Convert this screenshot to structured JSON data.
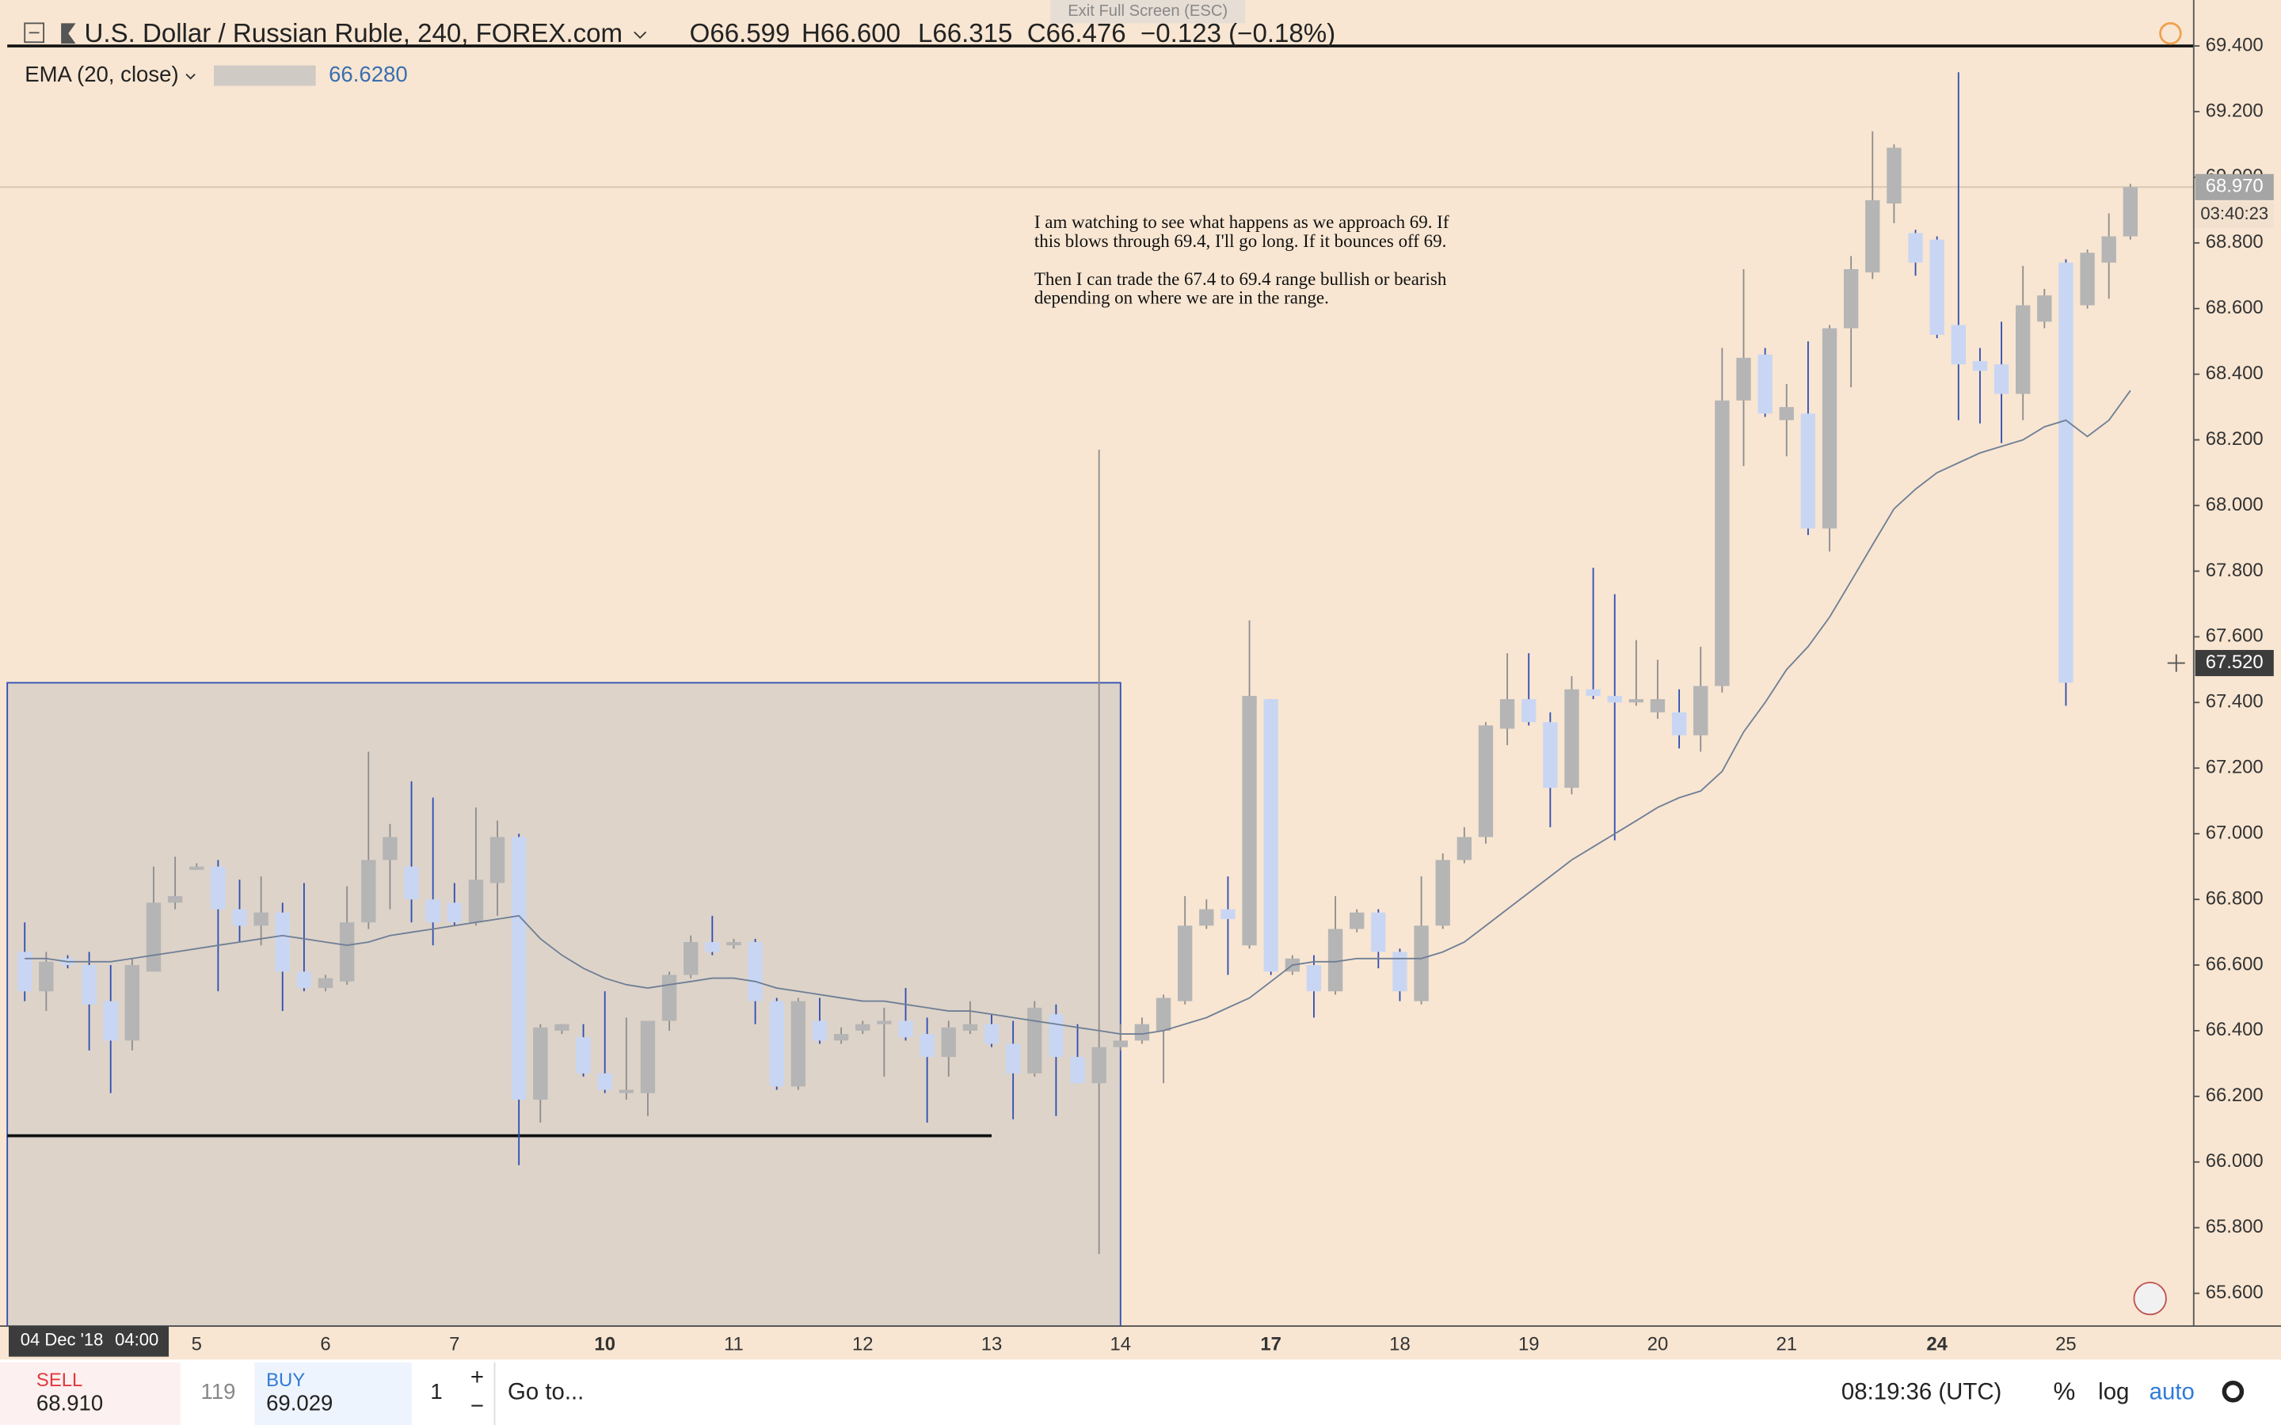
{
  "ui": {
    "fullscreen_hint": "Exit Full Screen (ESC)",
    "ohlc_header": [
      "O66.599",
      "H66.600",
      "L66.315",
      "C66.476",
      "−0.123 (−0.18%)"
    ],
    "countdown": "03:40:23",
    "crosshair_time": "04 Dec '18",
    "crosshair_clock": "04:00",
    "sell_label": "SELL",
    "sell_price": "68.910",
    "spread": "119",
    "buy_label": "BUY",
    "buy_price": "69.029",
    "quantity": "1",
    "plus": "+",
    "minus": "−",
    "goto": "Go to...",
    "clock": "08:19:36 (UTC)",
    "percent": "%",
    "log": "log",
    "auto": "auto"
  },
  "chart_data": {
    "type": "candlestick",
    "title": "U.S. Dollar / Russian Ruble, 240, FOREX.com",
    "annotation": [
      "I am watching to see what happens as we approach 69. If",
      "this blows through 69.4, I'll go long. If it bounces off 69.",
      "Then I can trade the 67.4 to 69.4 range bullish or bearish",
      "depending on where we are in the range."
    ],
    "categories": [
      null,
      null,
      null,
      null,
      null,
      null,
      null,
      null,
      "5",
      null,
      null,
      null,
      null,
      null,
      "6",
      null,
      null,
      null,
      null,
      null,
      "7",
      null,
      null,
      null,
      null,
      null,
      null,
      "10",
      null,
      null,
      null,
      null,
      null,
      "11",
      null,
      null,
      null,
      null,
      null,
      "12",
      null,
      null,
      null,
      null,
      null,
      "13",
      null,
      null,
      null,
      null,
      null,
      "14",
      null,
      null,
      null,
      null,
      null,
      null,
      "17",
      null,
      null,
      null,
      null,
      null,
      "18",
      null,
      null,
      null,
      null,
      null,
      "19",
      null,
      null,
      null,
      null,
      null,
      "20",
      null,
      null,
      null,
      null,
      null,
      "21",
      null,
      null,
      null,
      null,
      null,
      null,
      "24",
      null,
      null,
      null,
      null,
      null,
      "25",
      null,
      null,
      null
    ],
    "open": [
      66.64,
      66.52,
      66.62,
      66.6,
      66.49,
      66.37,
      66.58,
      66.79,
      66.89,
      66.9,
      66.77,
      66.72,
      66.76,
      66.58,
      66.53,
      66.55,
      66.73,
      66.92,
      66.9,
      66.8,
      66.79,
      66.73,
      66.85,
      66.99,
      66.19,
      66.4,
      66.38,
      66.27,
      66.21,
      66.21,
      66.43,
      66.57,
      66.67,
      66.66,
      66.67,
      66.49,
      66.23,
      66.43,
      66.37,
      66.4,
      66.42,
      66.43,
      66.39,
      66.32,
      66.4,
      66.42,
      66.36,
      66.27,
      66.45,
      66.32,
      66.24,
      66.35,
      66.37,
      66.4,
      66.49,
      66.72,
      66.77,
      66.66,
      67.41,
      66.58,
      66.6,
      66.52,
      66.71,
      66.76,
      66.64,
      66.49,
      66.72,
      66.92,
      66.99,
      67.32,
      67.41,
      67.34,
      67.14,
      67.44,
      67.42,
      67.4,
      67.37,
      67.37,
      67.3,
      67.45,
      68.32,
      68.46,
      68.26,
      68.28,
      67.93,
      68.54,
      68.71,
      68.92,
      68.83,
      68.81,
      68.55,
      68.44,
      68.43,
      68.34,
      68.56,
      68.74,
      68.61,
      68.74,
      68.82
    ],
    "high": [
      66.73,
      66.64,
      66.63,
      66.64,
      66.6,
      66.62,
      66.9,
      66.93,
      66.91,
      66.92,
      66.86,
      66.87,
      66.79,
      66.85,
      66.57,
      66.84,
      67.25,
      67.03,
      67.16,
      67.11,
      66.85,
      67.08,
      67.04,
      67.0,
      66.42,
      66.42,
      66.42,
      66.52,
      66.44,
      66.43,
      66.58,
      66.69,
      66.75,
      66.68,
      66.68,
      66.5,
      66.5,
      66.5,
      66.41,
      66.43,
      66.47,
      66.53,
      66.44,
      66.43,
      66.49,
      66.45,
      66.43,
      66.49,
      66.48,
      66.42,
      68.17,
      66.42,
      66.44,
      66.51,
      66.81,
      66.8,
      66.87,
      67.65,
      67.41,
      66.63,
      66.63,
      66.81,
      66.77,
      66.77,
      66.65,
      66.87,
      66.94,
      67.02,
      67.34,
      67.55,
      67.55,
      67.37,
      67.48,
      67.81,
      67.73,
      67.59,
      67.53,
      67.44,
      67.57,
      68.48,
      68.72,
      68.48,
      68.37,
      68.5,
      68.55,
      68.76,
      69.14,
      69.1,
      68.84,
      68.82,
      69.32,
      68.48,
      68.56,
      68.73,
      68.66,
      68.75,
      68.78,
      68.89,
      68.98
    ],
    "low": [
      66.49,
      66.46,
      66.59,
      66.34,
      66.21,
      66.34,
      66.58,
      66.77,
      66.89,
      66.52,
      66.67,
      66.66,
      66.46,
      66.52,
      66.52,
      66.54,
      66.71,
      66.77,
      66.73,
      66.66,
      66.72,
      66.72,
      66.75,
      65.99,
      66.12,
      66.39,
      66.26,
      66.21,
      66.19,
      66.14,
      66.4,
      66.56,
      66.63,
      66.65,
      66.42,
      66.22,
      66.22,
      66.36,
      66.36,
      66.39,
      66.26,
      66.37,
      66.12,
      66.26,
      66.39,
      66.35,
      66.13,
      66.26,
      66.14,
      66.24,
      65.72,
      66.34,
      66.36,
      66.24,
      66.48,
      66.71,
      66.57,
      66.65,
      66.57,
      66.57,
      66.44,
      66.51,
      66.7,
      66.59,
      66.49,
      66.48,
      66.71,
      66.91,
      66.97,
      67.27,
      67.33,
      67.02,
      67.12,
      67.41,
      66.98,
      67.39,
      67.35,
      67.26,
      67.25,
      67.43,
      68.12,
      68.27,
      68.15,
      67.91,
      67.86,
      68.36,
      68.69,
      68.86,
      68.7,
      68.51,
      68.26,
      68.25,
      68.19,
      68.26,
      68.54,
      67.39,
      68.6,
      68.63,
      68.81
    ],
    "close": [
      66.52,
      66.61,
      66.6,
      66.48,
      66.37,
      66.6,
      66.79,
      66.81,
      66.9,
      66.77,
      66.72,
      66.76,
      66.58,
      66.53,
      66.56,
      66.73,
      66.92,
      66.99,
      66.8,
      66.73,
      66.73,
      66.86,
      66.99,
      66.19,
      66.41,
      66.42,
      66.27,
      66.22,
      66.22,
      66.43,
      66.57,
      66.67,
      66.64,
      66.67,
      66.49,
      66.23,
      66.49,
      66.37,
      66.39,
      66.42,
      66.43,
      66.38,
      66.32,
      66.41,
      66.42,
      66.36,
      66.27,
      66.47,
      66.32,
      66.24,
      66.35,
      66.37,
      66.42,
      66.5,
      66.72,
      66.77,
      66.74,
      67.42,
      66.58,
      66.62,
      66.52,
      66.71,
      66.76,
      66.64,
      66.52,
      66.72,
      66.92,
      66.99,
      67.33,
      67.41,
      67.34,
      67.14,
      67.44,
      67.42,
      67.4,
      67.41,
      67.41,
      67.3,
      67.45,
      68.32,
      68.45,
      68.28,
      68.3,
      67.93,
      68.54,
      68.72,
      68.93,
      69.09,
      68.74,
      68.52,
      68.43,
      68.41,
      68.34,
      68.61,
      68.64,
      67.46,
      68.77,
      68.82,
      68.97
    ],
    "up_color": "#b5b5b5",
    "down_color": "#c9d6f3",
    "down_wick_color": "#2f4fb5",
    "ema": {
      "name": "EMA (20, close)",
      "value_label": "66.6280",
      "color": "#6f7f96",
      "values": [
        66.62,
        66.62,
        66.61,
        66.61,
        66.61,
        66.62,
        66.63,
        66.64,
        66.65,
        66.66,
        66.67,
        66.68,
        66.69,
        66.68,
        66.67,
        66.66,
        66.67,
        66.69,
        66.7,
        66.71,
        66.72,
        66.73,
        66.74,
        66.75,
        66.68,
        66.63,
        66.59,
        66.56,
        66.54,
        66.53,
        66.54,
        66.55,
        66.56,
        66.56,
        66.55,
        66.53,
        66.52,
        66.51,
        66.5,
        66.49,
        66.49,
        66.48,
        66.47,
        66.46,
        66.46,
        66.45,
        66.44,
        66.43,
        66.42,
        66.41,
        66.4,
        66.39,
        66.39,
        66.4,
        66.42,
        66.44,
        66.47,
        66.5,
        66.55,
        66.6,
        66.61,
        66.61,
        66.62,
        66.62,
        66.62,
        66.62,
        66.64,
        66.67,
        66.72,
        66.77,
        66.82,
        66.87,
        66.92,
        66.96,
        67.0,
        67.04,
        67.08,
        67.11,
        67.13,
        67.19,
        67.31,
        67.4,
        67.5,
        67.57,
        67.66,
        67.77,
        67.88,
        67.99,
        68.05,
        68.1,
        68.13,
        68.16,
        68.18,
        68.2,
        68.24,
        68.26,
        68.21,
        68.26,
        68.35
      ]
    },
    "horizontal_lines": [
      69.4,
      66.08
    ],
    "box_top": 67.46,
    "last_price": {
      "value": 68.97,
      "label": "68.970"
    },
    "crosshair_price": {
      "value": 67.52,
      "label": "67.520"
    },
    "ylim": [
      65.5,
      69.54
    ],
    "yticks": [
      {
        "value": 65.6,
        "label": "65.600"
      },
      {
        "value": 65.8,
        "label": "65.800"
      },
      {
        "value": 66.0,
        "label": "66.000"
      },
      {
        "value": 66.2,
        "label": "66.200"
      },
      {
        "value": 66.4,
        "label": "66.400"
      },
      {
        "value": 66.6,
        "label": "66.600"
      },
      {
        "value": 66.8,
        "label": "66.800"
      },
      {
        "value": 67.0,
        "label": "67.000"
      },
      {
        "value": 67.2,
        "label": "67.200"
      },
      {
        "value": 67.4,
        "label": "67.400"
      },
      {
        "value": 67.6,
        "label": "67.600"
      },
      {
        "value": 67.8,
        "label": "67.800"
      },
      {
        "value": 68.0,
        "label": "68.000"
      },
      {
        "value": 68.2,
        "label": "68.200"
      },
      {
        "value": 68.4,
        "label": "68.400"
      },
      {
        "value": 68.6,
        "label": "68.600"
      },
      {
        "value": 68.8,
        "label": "68.800"
      },
      {
        "value": 69.0,
        "label": "69.000"
      },
      {
        "value": 69.2,
        "label": "69.200"
      },
      {
        "value": 69.4,
        "label": "69.400"
      }
    ]
  }
}
